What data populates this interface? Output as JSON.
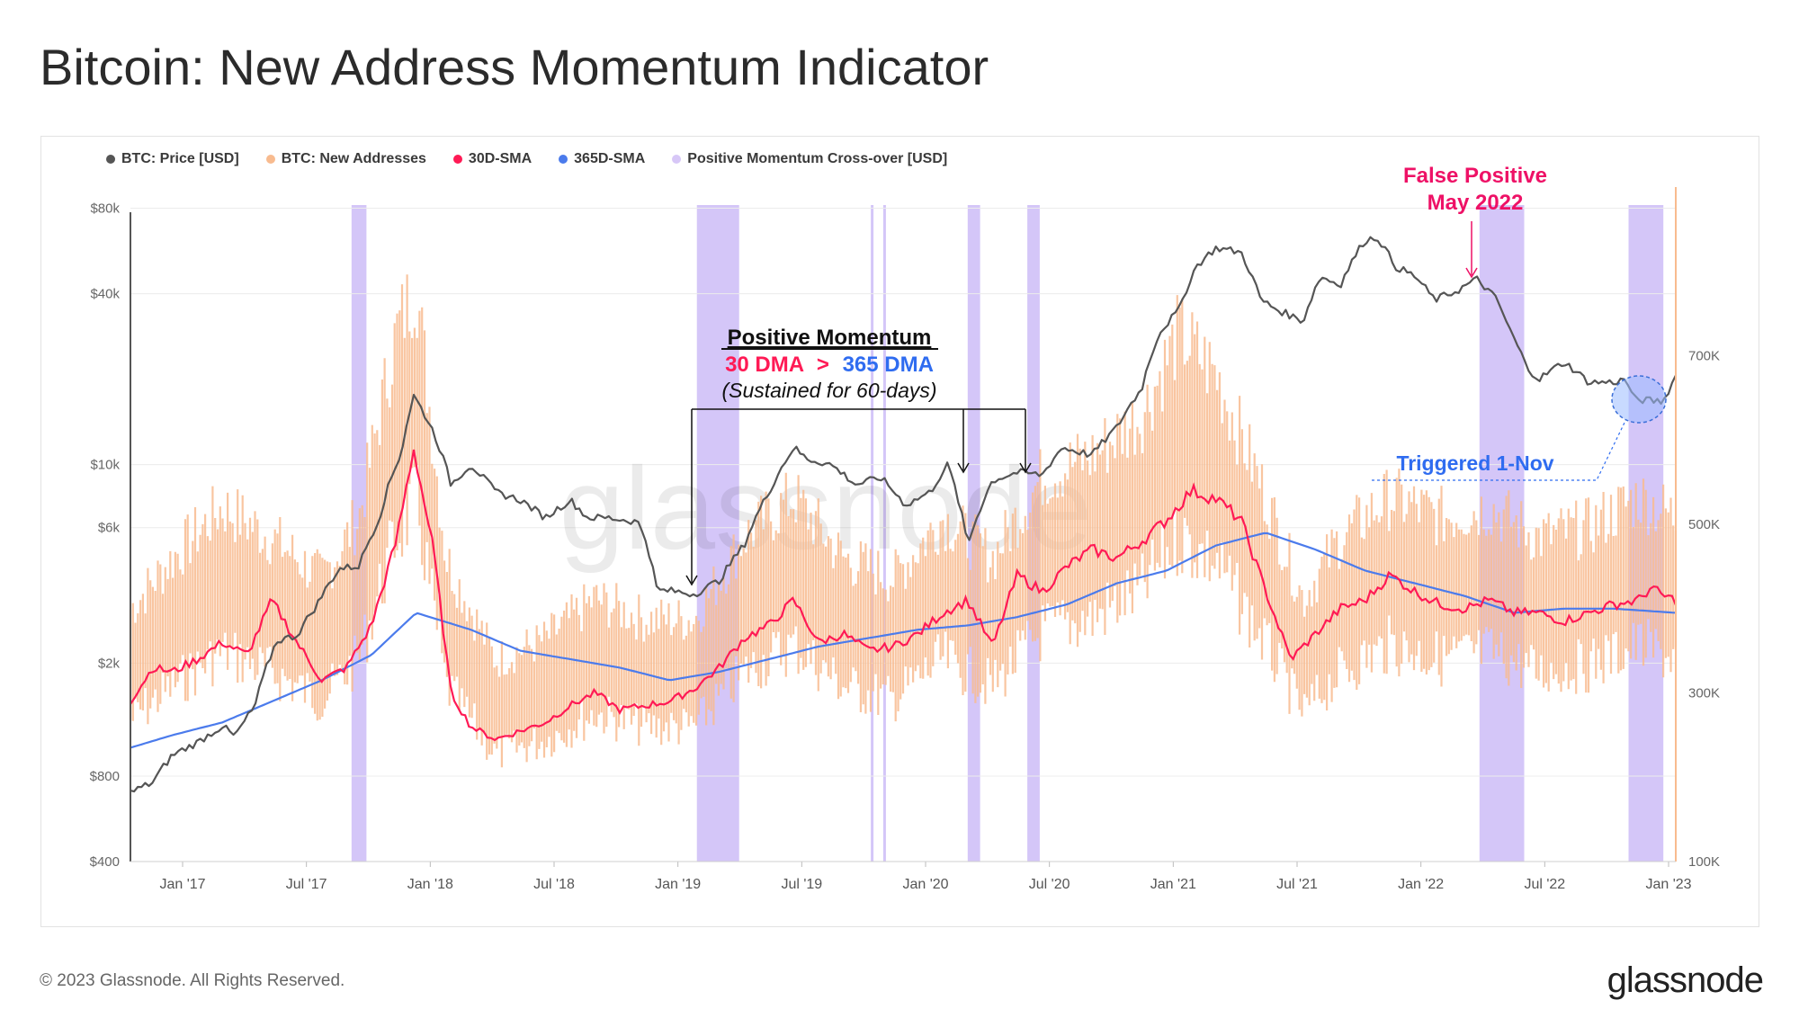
{
  "title": "Bitcoin: New Address Momentum Indicator",
  "footer": "© 2023 Glassnode. All Rights Reserved.",
  "brand": "glassnode",
  "watermark": "glassnode",
  "legend": [
    {
      "label": "BTC: Price [USD]",
      "color": "#555555"
    },
    {
      "label": "BTC: New Addresses",
      "color": "#f8bb8f"
    },
    {
      "label": "30D-SMA",
      "color": "#ff1a55"
    },
    {
      "label": "365D-SMA",
      "color": "#4b7bec"
    },
    {
      "label": "Positive Momentum Cross-over [USD]",
      "color": "#d7c7f7"
    }
  ],
  "annotations": {
    "pm_title": "Positive Momentum",
    "pm_a": "30 DMA",
    "pm_gt": ">",
    "pm_b": "365 DMA",
    "pm_sub": "(Sustained for 60-days)",
    "fp_line1": "False Positive",
    "fp_line2": "May 2022",
    "triggered": "Triggered 1-Nov"
  },
  "chart_data": {
    "type": "line",
    "title": "Bitcoin: New Address Momentum Indicator",
    "x_ticks": [
      "Jan '17",
      "Jul '17",
      "Jan '18",
      "Jul '18",
      "Jan '19",
      "Jul '19",
      "Jan '20",
      "Jul '20",
      "Jan '21",
      "Jul '21",
      "Jan '22",
      "Jul '22",
      "Jan '23"
    ],
    "x_range": [
      2016.83,
      2023.05
    ],
    "y_left": {
      "label": "BTC: Price [USD]",
      "scale": "log",
      "ticks": [
        "$400",
        "$800",
        "$2k",
        "$6k",
        "$10k",
        "$40k",
        "$80k"
      ],
      "tick_values": [
        400,
        800,
        2000,
        6000,
        10000,
        40000,
        80000
      ],
      "range": [
        400,
        95000
      ]
    },
    "y_right": {
      "label": "BTC: New Addresses",
      "scale": "linear",
      "ticks": [
        "100K",
        "300K",
        "500K",
        "700K"
      ],
      "tick_values": [
        100000,
        300000,
        500000,
        700000
      ],
      "range": [
        100000,
        900000
      ]
    },
    "series": [
      {
        "name": "BTC: Price [USD]",
        "axis": "left",
        "color": "#555555",
        "points": [
          [
            2016.83,
            700
          ],
          [
            2016.92,
            760
          ],
          [
            2017.0,
            950
          ],
          [
            2017.1,
            1050
          ],
          [
            2017.2,
            1200
          ],
          [
            2017.25,
            1100
          ],
          [
            2017.33,
            1400
          ],
          [
            2017.42,
            2400
          ],
          [
            2017.5,
            2500
          ],
          [
            2017.58,
            3200
          ],
          [
            2017.67,
            4300
          ],
          [
            2017.75,
            4400
          ],
          [
            2017.83,
            6400
          ],
          [
            2017.92,
            11000
          ],
          [
            2017.97,
            17500
          ],
          [
            2018.05,
            13000
          ],
          [
            2018.12,
            8500
          ],
          [
            2018.2,
            10000
          ],
          [
            2018.3,
            8000
          ],
          [
            2018.4,
            7500
          ],
          [
            2018.5,
            6500
          ],
          [
            2018.6,
            7500
          ],
          [
            2018.67,
            6500
          ],
          [
            2018.75,
            6500
          ],
          [
            2018.87,
            6300
          ],
          [
            2018.9,
            5600
          ],
          [
            2018.95,
            3600
          ],
          [
            2019.0,
            3600
          ],
          [
            2019.1,
            3500
          ],
          [
            2019.2,
            3900
          ],
          [
            2019.3,
            5200
          ],
          [
            2019.4,
            8000
          ],
          [
            2019.5,
            11500
          ],
          [
            2019.55,
            10500
          ],
          [
            2019.65,
            10000
          ],
          [
            2019.75,
            8500
          ],
          [
            2019.85,
            9000
          ],
          [
            2019.95,
            7200
          ],
          [
            2020.05,
            8000
          ],
          [
            2020.12,
            10000
          ],
          [
            2020.2,
            5200
          ],
          [
            2020.3,
            8800
          ],
          [
            2020.4,
            9400
          ],
          [
            2020.5,
            9200
          ],
          [
            2020.58,
            11500
          ],
          [
            2020.7,
            10800
          ],
          [
            2020.8,
            13500
          ],
          [
            2020.9,
            18500
          ],
          [
            2020.97,
            29000
          ],
          [
            2021.05,
            35000
          ],
          [
            2021.12,
            50000
          ],
          [
            2021.2,
            58000
          ],
          [
            2021.3,
            56000
          ],
          [
            2021.38,
            38000
          ],
          [
            2021.45,
            35000
          ],
          [
            2021.55,
            32000
          ],
          [
            2021.62,
            46000
          ],
          [
            2021.7,
            43000
          ],
          [
            2021.8,
            62000
          ],
          [
            2021.85,
            63000
          ],
          [
            2021.92,
            50000
          ],
          [
            2022.0,
            46000
          ],
          [
            2022.08,
            38000
          ],
          [
            2022.17,
            41000
          ],
          [
            2022.25,
            45000
          ],
          [
            2022.33,
            38000
          ],
          [
            2022.38,
            30000
          ],
          [
            2022.45,
            22000
          ],
          [
            2022.5,
            20000
          ],
          [
            2022.6,
            23000
          ],
          [
            2022.7,
            19500
          ],
          [
            2022.8,
            19500
          ],
          [
            2022.85,
            20000
          ],
          [
            2022.88,
            17000
          ],
          [
            2022.95,
            16800
          ],
          [
            2023.0,
            16700
          ],
          [
            2023.05,
            20500
          ]
        ]
      },
      {
        "name": "BTC: New Addresses",
        "axis": "right",
        "color": "#f8bb8f",
        "points": [
          [
            2016.83,
            330000
          ],
          [
            2017.0,
            380000
          ],
          [
            2017.2,
            430000
          ],
          [
            2017.4,
            400000
          ],
          [
            2017.6,
            360000
          ],
          [
            2017.75,
            420000
          ],
          [
            2017.9,
            600000
          ],
          [
            2017.98,
            650000
          ],
          [
            2018.1,
            380000
          ],
          [
            2018.3,
            280000
          ],
          [
            2018.5,
            300000
          ],
          [
            2018.7,
            340000
          ],
          [
            2018.9,
            320000
          ],
          [
            2019.1,
            320000
          ],
          [
            2019.3,
            400000
          ],
          [
            2019.5,
            440000
          ],
          [
            2019.7,
            380000
          ],
          [
            2019.9,
            360000
          ],
          [
            2020.1,
            420000
          ],
          [
            2020.3,
            380000
          ],
          [
            2020.5,
            460000
          ],
          [
            2020.7,
            480000
          ],
          [
            2020.9,
            520000
          ],
          [
            2021.05,
            600000
          ],
          [
            2021.2,
            560000
          ],
          [
            2021.4,
            440000
          ],
          [
            2021.55,
            340000
          ],
          [
            2021.7,
            400000
          ],
          [
            2021.9,
            440000
          ],
          [
            2022.1,
            420000
          ],
          [
            2022.3,
            430000
          ],
          [
            2022.5,
            400000
          ],
          [
            2022.7,
            410000
          ],
          [
            2022.9,
            440000
          ],
          [
            2023.05,
            420000
          ]
        ]
      },
      {
        "name": "30D-SMA",
        "axis": "right",
        "color": "#ff1a55",
        "points": [
          [
            2016.83,
            290000
          ],
          [
            2016.92,
            330000
          ],
          [
            2017.0,
            325000
          ],
          [
            2017.1,
            340000
          ],
          [
            2017.2,
            360000
          ],
          [
            2017.3,
            345000
          ],
          [
            2017.4,
            410000
          ],
          [
            2017.5,
            360000
          ],
          [
            2017.6,
            315000
          ],
          [
            2017.7,
            330000
          ],
          [
            2017.8,
            380000
          ],
          [
            2017.9,
            480000
          ],
          [
            2017.97,
            590000
          ],
          [
            2018.05,
            470000
          ],
          [
            2018.12,
            300000
          ],
          [
            2018.2,
            260000
          ],
          [
            2018.3,
            245000
          ],
          [
            2018.4,
            255000
          ],
          [
            2018.5,
            265000
          ],
          [
            2018.6,
            285000
          ],
          [
            2018.7,
            300000
          ],
          [
            2018.8,
            280000
          ],
          [
            2018.9,
            285000
          ],
          [
            2019.0,
            290000
          ],
          [
            2019.1,
            305000
          ],
          [
            2019.2,
            330000
          ],
          [
            2019.3,
            365000
          ],
          [
            2019.4,
            380000
          ],
          [
            2019.5,
            410000
          ],
          [
            2019.6,
            360000
          ],
          [
            2019.7,
            370000
          ],
          [
            2019.8,
            350000
          ],
          [
            2019.9,
            355000
          ],
          [
            2020.0,
            370000
          ],
          [
            2020.1,
            395000
          ],
          [
            2020.2,
            410000
          ],
          [
            2020.3,
            355000
          ],
          [
            2020.4,
            440000
          ],
          [
            2020.5,
            420000
          ],
          [
            2020.6,
            450000
          ],
          [
            2020.7,
            470000
          ],
          [
            2020.8,
            460000
          ],
          [
            2020.9,
            480000
          ],
          [
            2021.0,
            505000
          ],
          [
            2021.1,
            540000
          ],
          [
            2021.2,
            530000
          ],
          [
            2021.3,
            505000
          ],
          [
            2021.4,
            420000
          ],
          [
            2021.5,
            340000
          ],
          [
            2021.6,
            370000
          ],
          [
            2021.7,
            400000
          ],
          [
            2021.8,
            410000
          ],
          [
            2021.9,
            440000
          ],
          [
            2022.0,
            420000
          ],
          [
            2022.1,
            405000
          ],
          [
            2022.2,
            400000
          ],
          [
            2022.3,
            410000
          ],
          [
            2022.4,
            395000
          ],
          [
            2022.5,
            395000
          ],
          [
            2022.6,
            385000
          ],
          [
            2022.7,
            395000
          ],
          [
            2022.8,
            405000
          ],
          [
            2022.9,
            410000
          ],
          [
            2022.95,
            425000
          ],
          [
            2023.0,
            415000
          ],
          [
            2023.05,
            410000
          ]
        ]
      },
      {
        "name": "365D-SMA",
        "axis": "right",
        "color": "#4b7bec",
        "points": [
          [
            2016.83,
            235000
          ],
          [
            2017.0,
            250000
          ],
          [
            2017.2,
            265000
          ],
          [
            2017.4,
            290000
          ],
          [
            2017.6,
            315000
          ],
          [
            2017.8,
            345000
          ],
          [
            2017.98,
            395000
          ],
          [
            2018.2,
            375000
          ],
          [
            2018.4,
            350000
          ],
          [
            2018.6,
            340000
          ],
          [
            2018.8,
            330000
          ],
          [
            2019.0,
            315000
          ],
          [
            2019.2,
            325000
          ],
          [
            2019.4,
            340000
          ],
          [
            2019.6,
            355000
          ],
          [
            2019.8,
            365000
          ],
          [
            2020.0,
            375000
          ],
          [
            2020.2,
            380000
          ],
          [
            2020.4,
            390000
          ],
          [
            2020.6,
            405000
          ],
          [
            2020.8,
            430000
          ],
          [
            2021.0,
            445000
          ],
          [
            2021.2,
            475000
          ],
          [
            2021.4,
            490000
          ],
          [
            2021.6,
            470000
          ],
          [
            2021.8,
            445000
          ],
          [
            2022.0,
            430000
          ],
          [
            2022.2,
            415000
          ],
          [
            2022.4,
            395000
          ],
          [
            2022.6,
            400000
          ],
          [
            2022.8,
            400000
          ],
          [
            2023.05,
            395000
          ]
        ]
      }
    ],
    "crossover_periods": [
      [
        2017.72,
        2017.78
      ],
      [
        2019.11,
        2019.28
      ],
      [
        2019.81,
        2019.82
      ],
      [
        2019.86,
        2019.87
      ],
      [
        2020.2,
        2020.25
      ],
      [
        2020.44,
        2020.49
      ],
      [
        2022.26,
        2022.44
      ],
      [
        2022.86,
        2023.0
      ]
    ]
  }
}
